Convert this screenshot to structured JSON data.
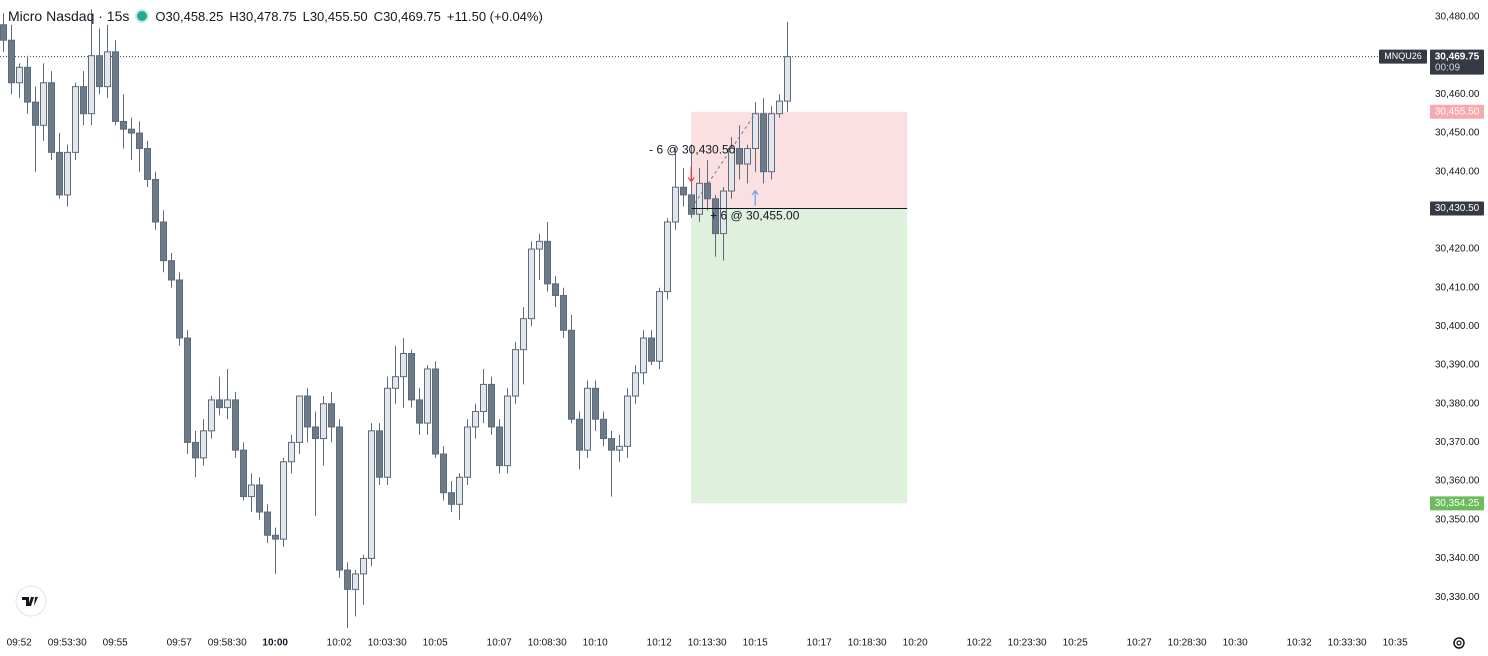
{
  "chart_data": {
    "type": "candlestick",
    "title": "Micro Nasdaq · 15s",
    "ohlc_legend": [
      {
        "label": "O",
        "value": "30,458.25"
      },
      {
        "label": "H",
        "value": "30,478.75"
      },
      {
        "label": "L",
        "value": "30,455.50"
      },
      {
        "label": "C",
        "value": "30,469.75"
      }
    ],
    "change": "+11.50 (+0.04%)",
    "x": [
      "09:51:30",
      "09:51:45",
      "09:52:00",
      "09:52:15",
      "09:52:30",
      "09:52:45",
      "09:53:00",
      "09:53:15",
      "09:53:30",
      "09:53:45",
      "09:54:00",
      "09:54:15",
      "09:54:30",
      "09:54:45",
      "09:55:00",
      "09:55:15",
      "09:55:30",
      "09:55:45",
      "09:56:00",
      "09:56:15",
      "09:56:30",
      "09:56:45",
      "09:57:00",
      "09:57:15",
      "09:57:30",
      "09:57:45",
      "09:58:00",
      "09:58:15",
      "09:58:30",
      "09:58:45",
      "09:59:00",
      "09:59:15",
      "09:59:30",
      "09:59:45",
      "10:00:00",
      "10:00:15",
      "10:00:30",
      "10:00:45",
      "10:01:00",
      "10:01:15",
      "10:01:30",
      "10:01:45",
      "10:02:00",
      "10:02:15",
      "10:02:30",
      "10:02:45",
      "10:03:00",
      "10:03:15",
      "10:03:30",
      "10:03:45",
      "10:04:00",
      "10:04:15",
      "10:04:30",
      "10:04:45",
      "10:05:00",
      "10:05:15",
      "10:05:30",
      "10:05:45",
      "10:06:00",
      "10:06:15",
      "10:06:30",
      "10:06:45",
      "10:07:00",
      "10:07:15",
      "10:07:30",
      "10:07:45",
      "10:08:00",
      "10:08:15",
      "10:08:30",
      "10:08:45",
      "10:09:00",
      "10:09:15",
      "10:09:30",
      "10:09:45",
      "10:10:00",
      "10:10:15",
      "10:10:30",
      "10:10:45",
      "10:11:00",
      "10:11:15",
      "10:11:30",
      "10:11:45",
      "10:12:00",
      "10:12:15",
      "10:12:30",
      "10:12:45",
      "10:13:00",
      "10:13:15",
      "10:13:30",
      "10:13:45",
      "10:14:00",
      "10:14:15",
      "10:14:30",
      "10:14:45",
      "10:15:00",
      "10:15:15",
      "10:15:30",
      "10:15:45",
      "10:16:00"
    ],
    "open": [
      30478,
      30474,
      30463,
      30467,
      30458,
      30452,
      30463,
      30445,
      30434,
      30445,
      30462,
      30455,
      30470,
      30462,
      30471,
      30453,
      30451,
      30450,
      30446,
      30438,
      30427,
      30417,
      30412,
      30397,
      30370,
      30366,
      30373,
      30381,
      30379,
      30381,
      30368,
      30356,
      30359,
      30352,
      30346,
      30345,
      30365,
      30370,
      30382,
      30374,
      30371,
      30380,
      30374,
      30337,
      30332,
      30336,
      30340,
      30373,
      30361,
      30384,
      30387,
      30393,
      30381,
      30375,
      30389,
      30367,
      30357,
      30354,
      30361,
      30374,
      30378,
      30385,
      30374,
      30364,
      30382,
      30394,
      30402,
      30420,
      30422,
      30411,
      30408,
      30399,
      30376,
      30368,
      30384,
      30376,
      30371,
      30368,
      30369,
      30382,
      30388,
      30397,
      30391,
      30409,
      30427,
      30436,
      30434,
      30429,
      30437,
      30433,
      30424,
      30435,
      30446,
      30442,
      30446,
      30455,
      30440,
      30455,
      30458.25
    ],
    "high": [
      30481,
      30478,
      30468,
      30470,
      30462,
      30468,
      30466,
      30450,
      30447,
      30463,
      30466,
      30482,
      30477,
      30478,
      30474,
      30460,
      30454,
      30453,
      30448,
      30440,
      30430,
      30419,
      30414,
      30399,
      30373,
      30376,
      30382,
      30387,
      30389,
      30383,
      30370,
      30362,
      30361,
      30354,
      30348,
      30366,
      30372,
      30382,
      30384,
      30378,
      30382,
      30383,
      30376,
      30339,
      30337,
      30341,
      30375,
      30375,
      30387,
      30395,
      30397,
      30394,
      30384,
      30390,
      30391,
      30369,
      30360,
      30362,
      30376,
      30380,
      30389,
      30387,
      30376,
      30384,
      30396,
      30405,
      30422,
      30424,
      30427,
      30413,
      30410,
      30403,
      30378,
      30386,
      30386,
      30378,
      30373,
      30372,
      30384,
      30390,
      30399,
      30399,
      30410,
      30428,
      30446,
      30441,
      30447,
      30441,
      30443,
      30434,
      30436,
      30449,
      30452,
      30447,
      30458,
      30459,
      30457,
      30460,
      30478.75
    ],
    "low": [
      30471,
      30460,
      30459,
      30455,
      30440,
      30448,
      30443,
      30433,
      30431,
      30443,
      30452,
      30452,
      30460,
      30459,
      30452,
      30446,
      30443,
      30440,
      30436,
      30425,
      30414,
      30410,
      30395,
      30367,
      30361,
      30364,
      30371,
      30377,
      30376,
      30366,
      30355,
      30352,
      30350,
      30344,
      30336,
      30343,
      30362,
      30367,
      30370,
      30351,
      30364,
      30370,
      30335,
      30322,
      30325,
      30328,
      30338,
      30359,
      30359,
      30380,
      30379,
      30379,
      30372,
      30372,
      30366,
      30355,
      30352,
      30350,
      30359,
      30371,
      30375,
      30372,
      30362,
      30362,
      30380,
      30385,
      30400,
      30412,
      30409,
      30405,
      30397,
      30375,
      30363,
      30366,
      30373,
      30369,
      30356,
      30365,
      30366,
      30380,
      30385,
      30390,
      30389,
      30407,
      30425,
      30431,
      30428,
      30427,
      30430,
      30418,
      30417,
      30433,
      30438,
      30437,
      30440,
      30437,
      30438,
      30454,
      30455.5
    ],
    "close": [
      30474,
      30463,
      30467,
      30458,
      30452,
      30463,
      30445,
      30434,
      30445,
      30462,
      30455,
      30470,
      30462,
      30471,
      30453,
      30451,
      30450,
      30446,
      30438,
      30427,
      30417,
      30412,
      30397,
      30370,
      30366,
      30373,
      30381,
      30379,
      30381,
      30368,
      30356,
      30359,
      30352,
      30346,
      30345,
      30365,
      30370,
      30382,
      30374,
      30371,
      30380,
      30374,
      30337,
      30332,
      30336,
      30340,
      30373,
      30361,
      30384,
      30387,
      30393,
      30381,
      30375,
      30389,
      30367,
      30357,
      30354,
      30361,
      30374,
      30378,
      30385,
      30374,
      30364,
      30382,
      30394,
      30402,
      30420,
      30422,
      30411,
      30408,
      30399,
      30376,
      30368,
      30384,
      30376,
      30371,
      30368,
      30369,
      30382,
      30388,
      30397,
      30391,
      30409,
      30427,
      30436,
      30434,
      30429,
      30437,
      30433,
      30424,
      30435,
      30446,
      30442,
      30446,
      30455,
      30440,
      30455,
      30458.25,
      30469.75
    ],
    "up_color": "#e3e6ec",
    "down_color": "#6b7b8c",
    "wick_color": "#5d6b7a",
    "xlim": [
      "09:51:24",
      "10:35:56"
    ],
    "ylim": [
      30321.5,
      30484.4
    ],
    "yticks": [
      {
        "value": 30330,
        "label": "30,330.00"
      },
      {
        "value": 30340,
        "label": "30,340.00"
      },
      {
        "value": 30350,
        "label": "30,350.00"
      },
      {
        "value": 30360,
        "label": "30,360.00"
      },
      {
        "value": 30370,
        "label": "30,370.00"
      },
      {
        "value": 30380,
        "label": "30,380.00"
      },
      {
        "value": 30390,
        "label": "30,390.00"
      },
      {
        "value": 30400,
        "label": "30,400.00"
      },
      {
        "value": 30410,
        "label": "30,410.00"
      },
      {
        "value": 30420,
        "label": "30,420.00"
      },
      {
        "value": 30430,
        "label": "30,430.00"
      },
      {
        "value": 30440,
        "label": "30,440.00"
      },
      {
        "value": 30450,
        "label": "30,450.00"
      },
      {
        "value": 30460,
        "label": "30,460.00"
      },
      {
        "value": 30470,
        "label": "30,470.00"
      },
      {
        "value": 30480,
        "label": "30,480.00"
      }
    ],
    "xticks": [
      {
        "value": "09:52:00",
        "label": "09:52"
      },
      {
        "value": "09:53:30",
        "label": "09:53:30"
      },
      {
        "value": "09:55:00",
        "label": "09:55"
      },
      {
        "value": "09:57:00",
        "label": "09:57"
      },
      {
        "value": "09:58:30",
        "label": "09:58:30"
      },
      {
        "value": "10:00:00",
        "label": "10:00",
        "bold": true
      },
      {
        "value": "10:02:00",
        "label": "10:02"
      },
      {
        "value": "10:03:30",
        "label": "10:03:30"
      },
      {
        "value": "10:05:00",
        "label": "10:05"
      },
      {
        "value": "10:07:00",
        "label": "10:07"
      },
      {
        "value": "10:08:30",
        "label": "10:08:30"
      },
      {
        "value": "10:10:00",
        "label": "10:10"
      },
      {
        "value": "10:12:00",
        "label": "10:12"
      },
      {
        "value": "10:13:30",
        "label": "10:13:30"
      },
      {
        "value": "10:15:00",
        "label": "10:15"
      },
      {
        "value": "10:17:00",
        "label": "10:17"
      },
      {
        "value": "10:18:30",
        "label": "10:18:30"
      },
      {
        "value": "10:20:00",
        "label": "10:20"
      },
      {
        "value": "10:22:00",
        "label": "10:22"
      },
      {
        "value": "10:23:30",
        "label": "10:23:30"
      },
      {
        "value": "10:25:00",
        "label": "10:25"
      },
      {
        "value": "10:27:00",
        "label": "10:27"
      },
      {
        "value": "10:28:30",
        "label": "10:28:30"
      },
      {
        "value": "10:30:00",
        "label": "10:30"
      },
      {
        "value": "10:32:00",
        "label": "10:32"
      },
      {
        "value": "10:33:30",
        "label": "10:33:30"
      },
      {
        "value": "10:35:00",
        "label": "10:35"
      }
    ],
    "grid": false,
    "last_price": {
      "symbol": "MNQU26",
      "value": 30469.75,
      "label": "30,469.75",
      "countdown": "00:09",
      "color": "#363a45"
    },
    "position": {
      "start": "10:13:00",
      "end": "10:19:45",
      "stop": {
        "value": 30455.5,
        "label": "30,455.50",
        "color": "#f7a9ae",
        "zone_color": "#fbe0e2"
      },
      "entry": {
        "value": 30430.5,
        "label": "30,430.50",
        "color": "#363a45"
      },
      "target": {
        "value": 30354.25,
        "label": "30,354.25",
        "color": "#6cbb5d",
        "zone_color": "#dff0dc"
      }
    },
    "annotations": [
      {
        "text": "- 6 @ 30,430.50",
        "time": "10:13:00",
        "price": 30430.5,
        "color": "#f23645"
      },
      {
        "text": "+ 6 @ 30,455.00",
        "time": "10:15:00",
        "price": 30455,
        "color": "#5b9cf6"
      }
    ]
  }
}
